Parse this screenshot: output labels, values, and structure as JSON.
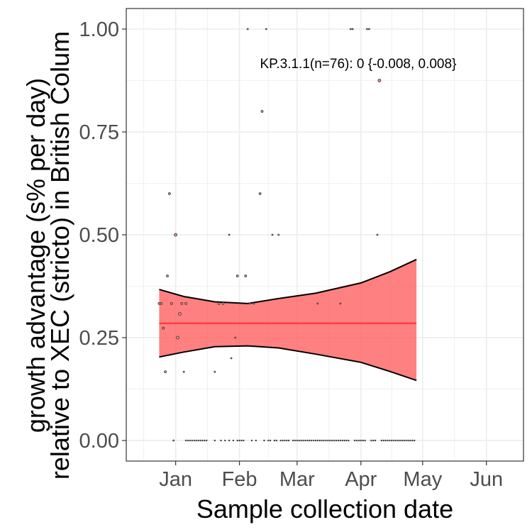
{
  "chart_data": {
    "type": "scatter",
    "title": "",
    "xlabel": "Sample collection date",
    "ylabel_lines": [
      "growth advantage (s% per day)",
      "relative to XEC (stricto) in British Colum"
    ],
    "x_ticks": [
      {
        "date": "2025-01-01",
        "label": "Jan"
      },
      {
        "date": "2025-02-01",
        "label": "Feb"
      },
      {
        "date": "2025-03-01",
        "label": "Mar"
      },
      {
        "date": "2025-04-01",
        "label": "Apr"
      },
      {
        "date": "2025-05-01",
        "label": "May"
      },
      {
        "date": "2025-06-01",
        "label": "Jun"
      }
    ],
    "y_ticks": [
      {
        "value": 0,
        "label": "0.00"
      },
      {
        "value": 0.25,
        "label": "0.25"
      },
      {
        "value": 0.5,
        "label": "0.50"
      },
      {
        "value": 0.75,
        "label": "0.75"
      },
      {
        "value": 1,
        "label": "1.00"
      }
    ],
    "xlim": [
      "2024-12-08",
      "2025-06-19"
    ],
    "ylim": [
      -0.05,
      1.05
    ],
    "grid": true,
    "annotation": "KP.3.1.1(n=76): 0 {-0.008, 0.008}",
    "colors": {
      "band": "#ff5555",
      "fit_line": "#ff3333",
      "point_fill": "#e88c8c",
      "point_stroke": "#333333",
      "panel_border": "#333333",
      "grid": "#ebebeb"
    },
    "fit": {
      "x": [
        "2024-12-24",
        "2025-01-05",
        "2025-01-20",
        "2025-02-05",
        "2025-02-20",
        "2025-03-10",
        "2025-04-01",
        "2025-04-15",
        "2025-04-28"
      ],
      "y": [
        0.285,
        0.285,
        0.285,
        0.285,
        0.285,
        0.285,
        0.285,
        0.285,
        0.285
      ],
      "lower": [
        0.203,
        0.215,
        0.228,
        0.23,
        0.225,
        0.21,
        0.19,
        0.168,
        0.146
      ],
      "upper": [
        0.367,
        0.35,
        0.337,
        0.333,
        0.345,
        0.358,
        0.383,
        0.41,
        0.44
      ]
    },
    "points": [
      {
        "x": "2024-12-24",
        "y": 0.333,
        "size": 1.5
      },
      {
        "x": "2024-12-25",
        "y": 0.333,
        "size": 1.5
      },
      {
        "x": "2024-12-26",
        "y": 0.273,
        "size": 1.5
      },
      {
        "x": "2024-12-27",
        "y": 0.167,
        "size": 1.5
      },
      {
        "x": "2024-12-28",
        "y": 0.4,
        "size": 1.5
      },
      {
        "x": "2024-12-29",
        "y": 0.6,
        "size": 1.5
      },
      {
        "x": "2024-12-30",
        "y": 0.333,
        "size": 1.5
      },
      {
        "x": "2024-12-31",
        "y": 0,
        "size": 1
      },
      {
        "x": "2025-01-01",
        "y": 0.5,
        "size": 2
      },
      {
        "x": "2025-01-02",
        "y": 0.25,
        "size": 2
      },
      {
        "x": "2025-01-03",
        "y": 0.308,
        "size": 2
      },
      {
        "x": "2025-01-04",
        "y": 0.333,
        "size": 1.5
      },
      {
        "x": "2025-01-05",
        "y": 0.167,
        "size": 1
      },
      {
        "x": "2025-01-06",
        "y": 0.333,
        "size": 1.5
      },
      {
        "x": "2025-01-20",
        "y": 0.167,
        "size": 1
      },
      {
        "x": "2025-01-22",
        "y": 0.333,
        "size": 1.5
      },
      {
        "x": "2025-01-24",
        "y": 0.333,
        "size": 1.5
      },
      {
        "x": "2025-01-27",
        "y": 0.5,
        "size": 1
      },
      {
        "x": "2025-01-28",
        "y": 0.2,
        "size": 1
      },
      {
        "x": "2025-01-30",
        "y": 0.25,
        "size": 1
      },
      {
        "x": "2025-01-31",
        "y": 0.4,
        "size": 1.5
      },
      {
        "x": "2025-02-04",
        "y": 0.4,
        "size": 1.5
      },
      {
        "x": "2025-02-05",
        "y": 1,
        "size": 1
      },
      {
        "x": "2025-02-06",
        "y": 0.333,
        "size": 1
      },
      {
        "x": "2025-02-08",
        "y": 0.333,
        "size": 1
      },
      {
        "x": "2025-02-11",
        "y": 0.6,
        "size": 1.5
      },
      {
        "x": "2025-02-12",
        "y": 0.8,
        "size": 1.5
      },
      {
        "x": "2025-02-14",
        "y": 1,
        "size": 1
      },
      {
        "x": "2025-02-17",
        "y": 0.5,
        "size": 1
      },
      {
        "x": "2025-02-20",
        "y": 0.5,
        "size": 1
      },
      {
        "x": "2025-03-11",
        "y": 0.333,
        "size": 1
      },
      {
        "x": "2025-03-22",
        "y": 0.333,
        "size": 1
      },
      {
        "x": "2025-03-27",
        "y": 1,
        "size": 1
      },
      {
        "x": "2025-03-28",
        "y": 1,
        "size": 1
      },
      {
        "x": "2025-04-04",
        "y": 1,
        "size": 1
      },
      {
        "x": "2025-04-05",
        "y": 1,
        "size": 1
      },
      {
        "x": "2025-04-09",
        "y": 0.5,
        "size": 1
      },
      {
        "x": "2025-04-10",
        "y": 0.875,
        "size": 2
      }
    ],
    "zero_points_x": [
      "2025-01-06",
      "2025-01-07",
      "2025-01-08",
      "2025-01-09",
      "2025-01-10",
      "2025-01-11",
      "2025-01-12",
      "2025-01-13",
      "2025-01-14",
      "2025-01-15",
      "2025-01-16",
      "2025-01-20",
      "2025-01-23",
      "2025-01-25",
      "2025-01-27",
      "2025-01-29",
      "2025-01-31",
      "2025-02-01",
      "2025-02-02",
      "2025-02-03",
      "2025-02-07",
      "2025-02-09",
      "2025-02-13",
      "2025-02-15",
      "2025-02-16",
      "2025-02-18",
      "2025-02-19",
      "2025-02-21",
      "2025-02-22",
      "2025-02-23",
      "2025-02-24",
      "2025-02-25",
      "2025-02-27",
      "2025-02-28",
      "2025-03-01",
      "2025-03-02",
      "2025-03-03",
      "2025-03-04",
      "2025-03-05",
      "2025-03-06",
      "2025-03-07",
      "2025-03-08",
      "2025-03-09",
      "2025-03-10",
      "2025-03-11",
      "2025-03-12",
      "2025-03-13",
      "2025-03-14",
      "2025-03-15",
      "2025-03-16",
      "2025-03-17",
      "2025-03-18",
      "2025-03-19",
      "2025-03-20",
      "2025-03-21",
      "2025-03-22",
      "2025-03-23",
      "2025-03-24",
      "2025-03-25",
      "2025-03-26",
      "2025-03-29",
      "2025-03-30",
      "2025-03-31",
      "2025-04-01",
      "2025-04-02",
      "2025-04-03",
      "2025-04-06",
      "2025-04-07",
      "2025-04-08",
      "2025-04-11",
      "2025-04-12",
      "2025-04-13",
      "2025-04-14",
      "2025-04-15",
      "2025-04-16",
      "2025-04-17",
      "2025-04-18",
      "2025-04-19",
      "2025-04-20",
      "2025-04-21",
      "2025-04-22",
      "2025-04-23",
      "2025-04-24",
      "2025-04-25",
      "2025-04-26",
      "2025-04-27"
    ]
  }
}
